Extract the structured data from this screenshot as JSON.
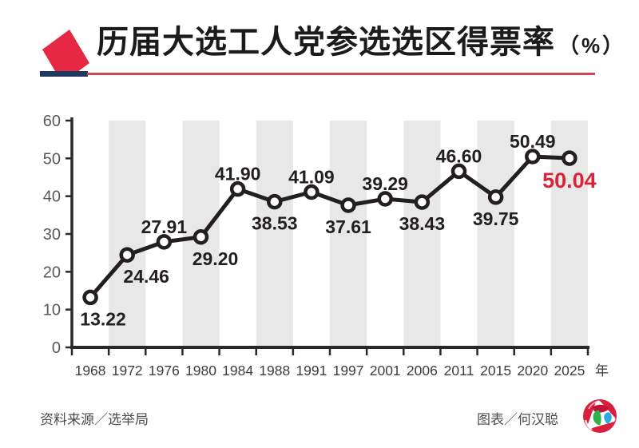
{
  "header": {
    "title": "历届大选工人党参选选区得票率",
    "title_suffix": "（%）"
  },
  "chart_data": {
    "type": "line",
    "title": "历届大选工人党参选选区得票率（%）",
    "categories": [
      "1968",
      "1972",
      "1976",
      "1980",
      "1984",
      "1988",
      "1991",
      "1997",
      "2001",
      "2006",
      "2011",
      "2015",
      "2020",
      "2025"
    ],
    "values": [
      13.22,
      24.46,
      27.91,
      29.2,
      41.9,
      38.53,
      41.09,
      37.61,
      39.29,
      38.43,
      46.6,
      39.75,
      50.49,
      50.04
    ],
    "value_labels": [
      "13.22",
      "24.46",
      "27.91",
      "29.20",
      "41.90",
      "38.53",
      "41.09",
      "37.61",
      "39.29",
      "38.43",
      "46.60",
      "39.75",
      "50.49",
      "50.04"
    ],
    "label_side": [
      "below",
      "below",
      "above",
      "below",
      "above",
      "below",
      "above",
      "below",
      "above",
      "below",
      "above",
      "below",
      "above",
      "below"
    ],
    "highlight_index": 13,
    "x_unit_label": "年",
    "y_ticks": [
      "0",
      "10",
      "20",
      "30",
      "40",
      "50",
      "60"
    ],
    "ylim": [
      0,
      60
    ],
    "shaded_band_indices": [
      1,
      3,
      5,
      7,
      9,
      11,
      13
    ],
    "grid": "alternating vertical gray bands",
    "legend": "none",
    "colors": {
      "line": "#231f20",
      "marker_fill": "#ffffff",
      "band": "#e8e8e8",
      "axis": "#2b2829",
      "y_tick_label": "#58595b",
      "x_tick_label": "#3d3c3e",
      "data_label": "#231f20",
      "highlight_label": "#da2339"
    }
  },
  "footer": {
    "source": "资料来源／选举局",
    "credit": "图表／何汉聪",
    "logo": "zaobao-logo"
  },
  "branding": {
    "icon": "ballot-box-icon",
    "accent_red": "#e62843",
    "underline_red": "#cb4a50",
    "navy": "#1e3a5f"
  }
}
